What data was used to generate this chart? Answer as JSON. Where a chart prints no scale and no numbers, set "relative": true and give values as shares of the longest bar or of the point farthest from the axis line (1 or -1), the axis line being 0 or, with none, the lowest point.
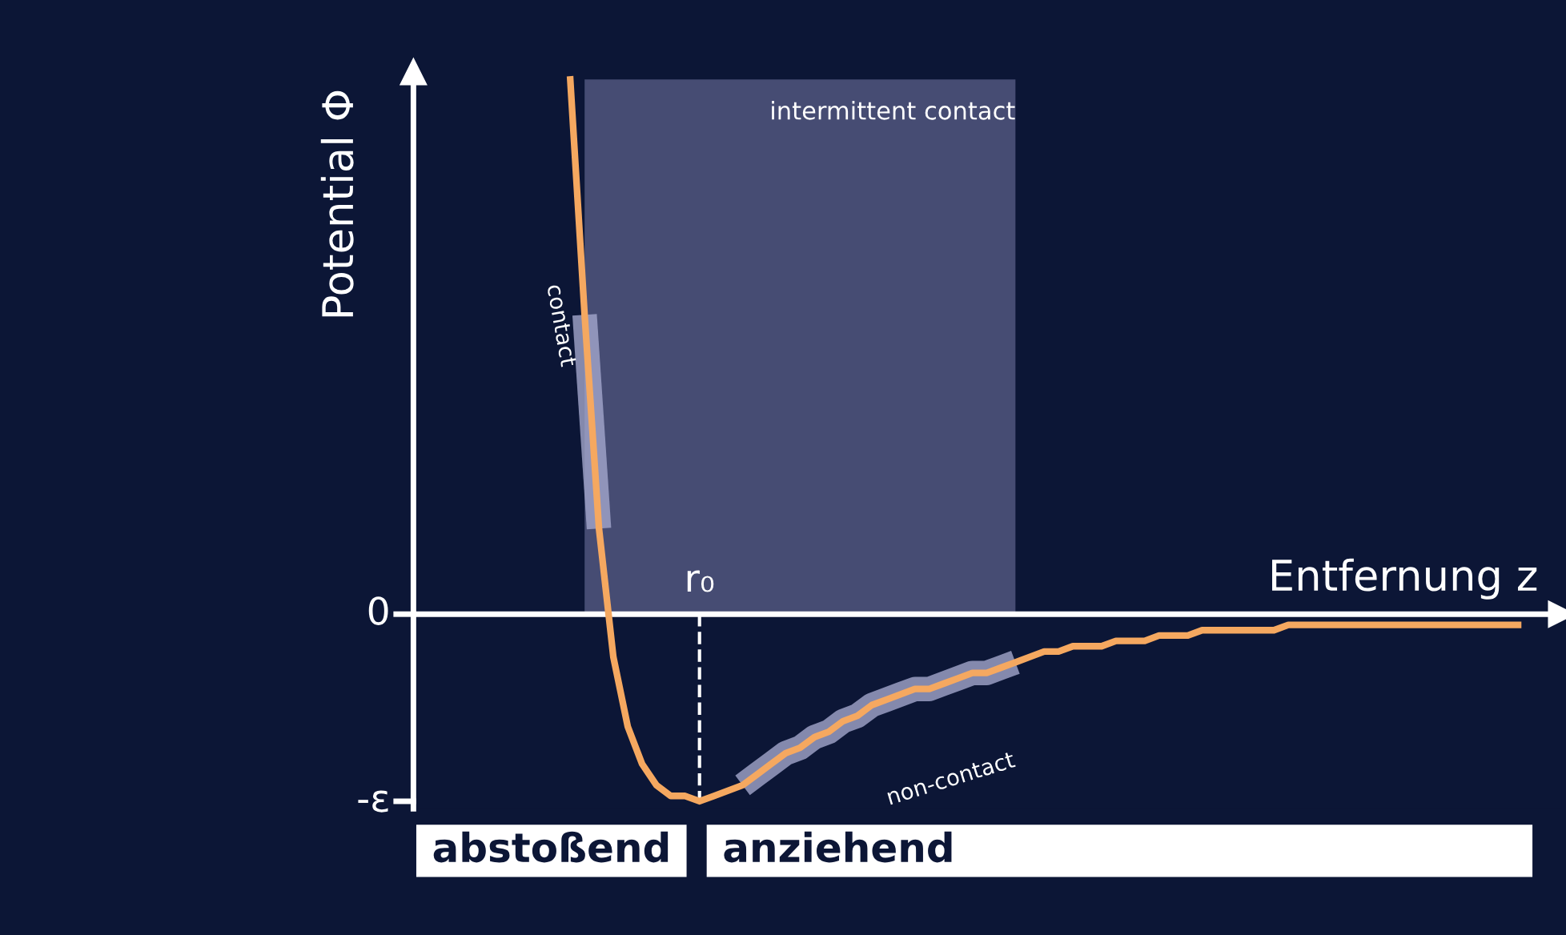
{
  "chart_data": {
    "type": "line",
    "xlabel": "Entfernung z",
    "ylabel": "Potential Φ",
    "relative": true,
    "grid": false,
    "line_style": "solid",
    "marker": "none",
    "categories": [
      null,
      null,
      null,
      null,
      null,
      null,
      null,
      null,
      null,
      null,
      null,
      null,
      null,
      null,
      null,
      null,
      null,
      null,
      null,
      null,
      null,
      null,
      null,
      null,
      null,
      null,
      null,
      null,
      null,
      null,
      null,
      null,
      null,
      null,
      null,
      null,
      null,
      null,
      null,
      null,
      null,
      null,
      null,
      null,
      null,
      null,
      null,
      null,
      null,
      null,
      null,
      null,
      null,
      null,
      null,
      null,
      null,
      null,
      null,
      null,
      null,
      null,
      null,
      null,
      null,
      null,
      null
    ],
    "series": [
      {
        "name": "intermittent contact",
        "type": "area",
        "color": "#5a5f88",
        "values": [
          null,
          1,
          1,
          1,
          1,
          1,
          1,
          1,
          1,
          1,
          1,
          1,
          1,
          1,
          1,
          1,
          1,
          1,
          1,
          1,
          1,
          1,
          1,
          1,
          1,
          1,
          1,
          1,
          1,
          1,
          1,
          1,
          null,
          null,
          null,
          null,
          null,
          null,
          null,
          null,
          null,
          null,
          null,
          null,
          null,
          null,
          null,
          null,
          null,
          null,
          null,
          null,
          null,
          null,
          null,
          null,
          null,
          null,
          null,
          null,
          null,
          null,
          null,
          null,
          null,
          null,
          null
        ]
      },
      {
        "name": "contact",
        "color": "#a3a6cc",
        "values": [
          null,
          0.56,
          0.16,
          null,
          null,
          null,
          null,
          null,
          null,
          null,
          null,
          null,
          null,
          null,
          null,
          null,
          null,
          null,
          null,
          null,
          null,
          null,
          null,
          null,
          null,
          null,
          null,
          null,
          null,
          null,
          null,
          null,
          null,
          null,
          null,
          null,
          null,
          null,
          null,
          null,
          null,
          null,
          null,
          null,
          null,
          null,
          null,
          null,
          null,
          null,
          null,
          null,
          null,
          null,
          null,
          null,
          null,
          null,
          null,
          null,
          null,
          null,
          null,
          null,
          null,
          null,
          null
        ]
      },
      {
        "name": "non-contact",
        "color": "#a3a6cc",
        "values": [
          null,
          null,
          null,
          null,
          null,
          null,
          null,
          null,
          null,
          null,
          null,
          null,
          -0.32,
          -0.3,
          -0.28,
          -0.26,
          -0.25,
          -0.23,
          -0.22,
          -0.2,
          -0.19,
          -0.17,
          -0.16,
          -0.15,
          -0.14,
          -0.14,
          -0.13,
          -0.12,
          -0.11,
          -0.11,
          -0.1,
          -0.09,
          null,
          null,
          null,
          null,
          null,
          null,
          null,
          null,
          null,
          null,
          null,
          null,
          null,
          null,
          null,
          null,
          null,
          null,
          null,
          null,
          null,
          null,
          null,
          null,
          null,
          null,
          null,
          null,
          null,
          null,
          null,
          null,
          null,
          null,
          null
        ]
      },
      {
        "color": "#f5a860",
        "values": [
          1,
          0.56,
          0.16,
          -0.08,
          -0.21,
          -0.28,
          -0.32,
          -0.34,
          -0.34,
          -0.35,
          -0.34,
          -0.33,
          -0.32,
          -0.3,
          -0.28,
          -0.26,
          -0.25,
          -0.23,
          -0.22,
          -0.2,
          -0.19,
          -0.17,
          -0.16,
          -0.15,
          -0.14,
          -0.14,
          -0.13,
          -0.12,
          -0.11,
          -0.11,
          -0.1,
          -0.09,
          -0.08,
          -0.07,
          -0.07,
          -0.06,
          -0.06,
          -0.06,
          -0.05,
          -0.05,
          -0.05,
          -0.04,
          -0.04,
          -0.04,
          -0.03,
          -0.03,
          -0.03,
          -0.03,
          -0.03,
          -0.03,
          -0.02,
          -0.02,
          -0.02,
          -0.02,
          -0.02,
          -0.02,
          -0.02,
          -0.02,
          -0.02,
          -0.02,
          -0.02,
          -0.02,
          -0.02,
          -0.02,
          -0.02,
          -0.02,
          -0.02
        ]
      }
    ],
    "annotations": [
      "0",
      "-ε",
      "r₀",
      "abstoßend",
      "anziehend"
    ]
  }
}
